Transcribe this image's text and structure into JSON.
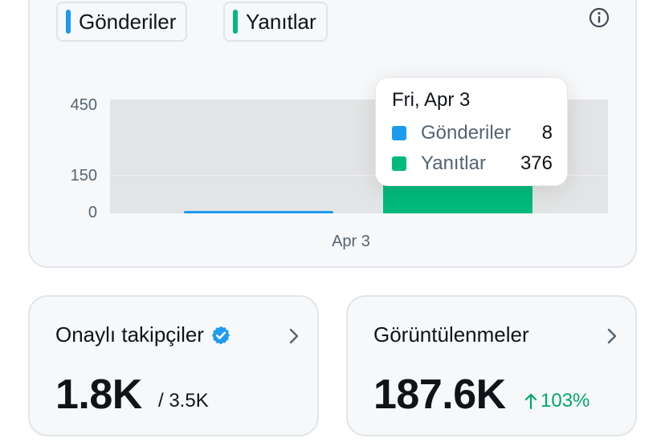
{
  "legend": {
    "items": [
      {
        "label": "Gönderiler",
        "color": "#1d9bf0"
      },
      {
        "label": "Yanıtlar",
        "color": "#00ba7c"
      }
    ]
  },
  "chart": {
    "y_ticks": [
      "450",
      "150",
      "0"
    ],
    "x_tick": "Apr 3"
  },
  "chart_data": {
    "type": "bar",
    "categories": [
      "Apr 3"
    ],
    "series": [
      {
        "name": "Gönderiler",
        "values": [
          8
        ]
      },
      {
        "name": "Yanıtlar",
        "values": [
          376
        ]
      }
    ],
    "ylim": [
      0,
      450
    ],
    "y_tick_values": [
      0,
      150,
      450
    ],
    "legend_placement": "top-left",
    "grid": true
  },
  "tooltip": {
    "date": "Fri, Apr 3",
    "rows": [
      {
        "name": "Gönderiler",
        "value": "8",
        "color": "#1d9bf0"
      },
      {
        "name": "Yanıtlar",
        "value": "376",
        "color": "#00ba7c"
      }
    ]
  },
  "stats": {
    "followers": {
      "title": "Onaylı takipçiler",
      "value": "1.8K",
      "sub": "/ 3.5K",
      "badge_color": "#1d9bf0"
    },
    "views": {
      "title": "Görüntülenmeler",
      "value": "187.6K",
      "delta": "103%",
      "delta_color": "#00a86b"
    }
  }
}
